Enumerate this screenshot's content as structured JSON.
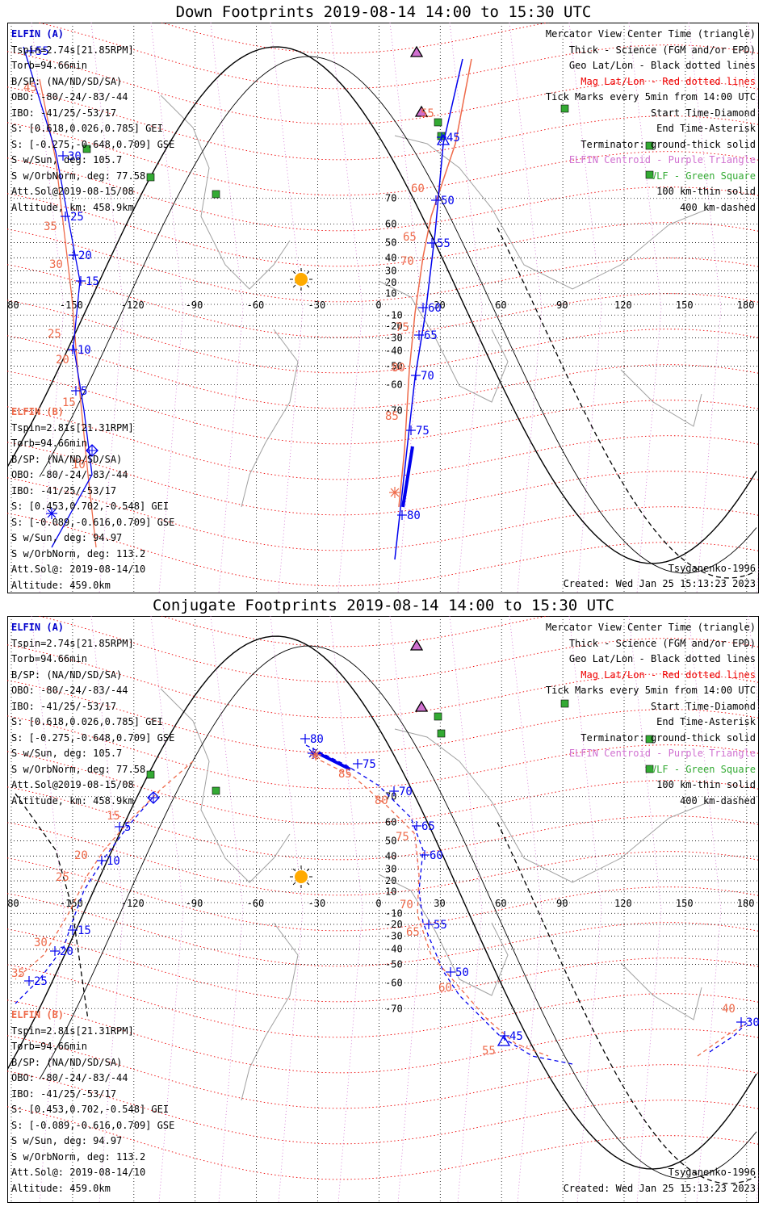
{
  "panels": [
    {
      "title": "Down Footprints 2019-08-14 14:00 to 15:30 UTC",
      "elfin_a": [
        "ELFIN (A)",
        "Tspin=2.74s[21.85RPM]",
        "Torb=94.66min",
        "B/SP: (NA/ND/SD/SA)",
        "OBO: -80/-24/-83/-44",
        "IBO: -41/25/-53/17",
        "S: [0.618,0.026,0.785] GEI",
        "S: [-0.275,-0.648,0.709] GSE",
        "S w/Sun, deg: 105.7",
        "S w/OrbNorm, deg: 77.58",
        "Att.Sol@2019-08-15/08",
        "Altitude, km: 458.9km"
      ],
      "elfin_b": [
        "ELFIN (B)",
        "Tspin=2.81s[21.31RPM]",
        "Torb=94.66min",
        "B/SP: (NA/ND/SD/SA)",
        "OBO: -80/-24/-83/-44",
        "IBO: -41/25/-53/17",
        "S: [0.453,0.702,-0.548] GEI",
        "S: [-0.089,-0.616,0.709] GSE",
        "S w/Sun, deg: 94.97",
        "S w/OrbNorm, deg: 113.2",
        "Att.Sol@: 2019-08-14/10",
        "Altitude: 459.0km"
      ],
      "legend": [
        "Mercator View Center Time (triangle)",
        "Thick - Science (FGM and/or EPD)",
        "Geo Lat/Lon - Black dotted lines",
        "Mag Lat/Lon - Red dotted lines",
        "Tick Marks every 5min from 14:00 UTC",
        "Start Time-Diamond",
        "End Time-Asterisk",
        "Terminator: ground-thick solid",
        "ELFIN Centroid - Purple Triangle",
        "VLF - Green Square",
        "100 km-thin solid",
        "400 km-dashed"
      ],
      "model": "Tsyganenko-1996",
      "created": "Created: Wed Jan 25 15:13:23 2023"
    },
    {
      "title": "Conjugate Footprints 2019-08-14 14:00 to 15:30 UTC",
      "elfin_a": [
        "ELFIN (A)",
        "Tspin=2.74s[21.85RPM]",
        "Torb=94.66min",
        "B/SP: (NA/ND/SD/SA)",
        "OBO: -80/-24/-83/-44",
        "IBO: -41/25/-53/17",
        "S: [0.618,0.026,0.785] GEI",
        "S: [-0.275,-0.648,0.709] GSE",
        "S w/Sun, deg: 105.7",
        "S w/OrbNorm, deg: 77.58",
        "Att.Sol@2019-08-15/08",
        "Altitude, km: 458.9km"
      ],
      "elfin_b": [
        "ELFIN (B)",
        "Tspin=2.81s[21.31RPM]",
        "Torb=94.66min",
        "B/SP: (NA/ND/SD/SA)",
        "OBO: -80/-24/-83/-44",
        "IBO: -41/25/-53/17",
        "S: [0.453,0.702,-0.548] GEI",
        "S: [-0.089,-0.616,0.709] GSE",
        "S w/Sun, deg: 94.97",
        "S w/OrbNorm, deg: 113.2",
        "Att.Sol@: 2019-08-14/10",
        "Altitude: 459.0km"
      ],
      "legend": [
        "Mercator View Center Time (triangle)",
        "Thick - Science (FGM and/or EPD)",
        "Geo Lat/Lon - Black dotted lines",
        "Mag Lat/Lon - Red dotted lines",
        "Tick Marks every 5min from 14:00 UTC",
        "Start Time-Diamond",
        "End Time-Asterisk",
        "Terminator: ground-thick solid",
        "ELFIN Centroid - Purple Triangle",
        "VLF - Green Square",
        "100 km-thin solid",
        "400 km-dashed"
      ],
      "model": "Tsyganenko-1996",
      "created": "Created: Wed Jan 25 15:13:23 2023"
    }
  ],
  "colors": {
    "elfin_a": "#0000ee",
    "elfin_b": "#ee6a4a",
    "mag_grid": "#ee0000",
    "geo_grid": "#000000",
    "centroid": "#d070d0",
    "vlf": "#33aa33",
    "sun": "#ffaa00"
  },
  "map": {
    "lon_ticks": [
      "180",
      "-150",
      "-120",
      "-90",
      "-60",
      "-30",
      "0",
      "30",
      "60",
      "90",
      "120",
      "150",
      "180"
    ],
    "lat_ticks": [
      "70",
      "60",
      "50",
      "40",
      "30",
      "20",
      "10",
      "-10",
      "-20",
      "-30",
      "-40",
      "-50",
      "-60",
      "-70"
    ],
    "icons": [
      "sun-icon",
      "vlf-station-icon",
      "centroid-triangle-icon",
      "start-diamond-icon",
      "end-asterisk-icon"
    ]
  },
  "track_labels": {
    "down_a": [
      "55",
      "30",
      "25",
      "20",
      "15",
      "10",
      "5",
      "45",
      "50",
      "55",
      "60",
      "65",
      "70",
      "75",
      "80"
    ],
    "down_b": [
      "45",
      "35",
      "30",
      "25",
      "20",
      "15",
      "10",
      "55",
      "60",
      "65",
      "70",
      "75",
      "80",
      "85"
    ],
    "conj_a": [
      "80",
      "75",
      "70",
      "65",
      "60",
      "55",
      "50",
      "45",
      "5",
      "10",
      "15",
      "20",
      "25",
      "30"
    ],
    "conj_b": [
      "85",
      "80",
      "75",
      "70",
      "65",
      "60",
      "55",
      "15",
      "20",
      "25",
      "30",
      "35",
      "40"
    ]
  }
}
